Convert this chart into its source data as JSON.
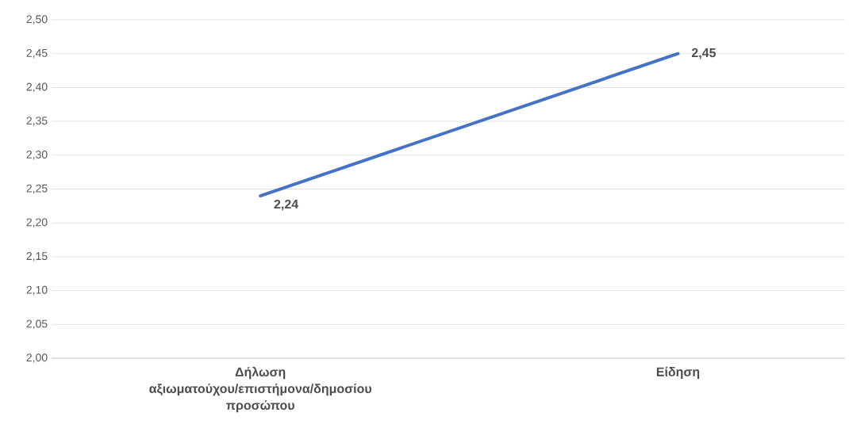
{
  "chart_data": {
    "type": "line",
    "categories": [
      "Δήλωση αξιωματούχου/επιστήμονα/δημοσίου προσώπου",
      "Είδηση"
    ],
    "series": [
      {
        "color": "#4472c4",
        "values": [
          2.24,
          2.45
        ],
        "value_labels": [
          "2,24",
          "2,45"
        ]
      }
    ],
    "ylim": [
      2.0,
      2.5
    ],
    "yticks": [
      {
        "value": 2.0,
        "label": "2,00"
      },
      {
        "value": 2.05,
        "label": "2,05"
      },
      {
        "value": 2.1,
        "label": "2,10"
      },
      {
        "value": 2.15,
        "label": "2,15"
      },
      {
        "value": 2.2,
        "label": "2,20"
      },
      {
        "value": 2.25,
        "label": "2,25"
      },
      {
        "value": 2.3,
        "label": "2,30"
      },
      {
        "value": 2.35,
        "label": "2,35"
      },
      {
        "value": 2.4,
        "label": "2,40"
      },
      {
        "value": 2.45,
        "label": "2,45"
      },
      {
        "value": 2.5,
        "label": "2,50"
      }
    ],
    "grid": "y",
    "legend": false,
    "marker": "none",
    "line_style": "solid"
  }
}
